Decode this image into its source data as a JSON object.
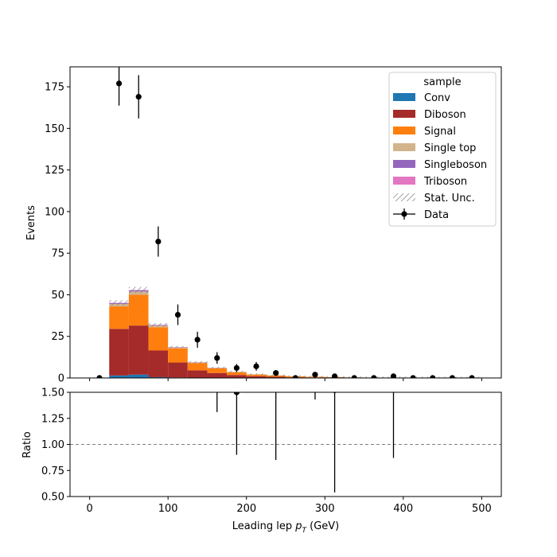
{
  "chart_data": {
    "type": "bar",
    "stacked": true,
    "xlabel": "Leading lep",
    "xlabel_math": "p",
    "xlabel_sub": "T",
    "xlabel_unit": "(GeV)",
    "ylabel_top": "Events",
    "ylabel_bottom": "Ratio",
    "xlim": [
      -25,
      525
    ],
    "ylim_top": [
      0,
      187
    ],
    "ylim_bottom": [
      0.5,
      1.5
    ],
    "bin_edges": [
      25,
      50,
      75,
      100,
      125,
      150,
      175,
      200,
      225,
      250,
      275,
      300,
      325,
      350,
      375,
      400,
      425,
      450,
      475,
      500
    ],
    "xticks": [
      0,
      100,
      200,
      300,
      400,
      500
    ],
    "xtick_labels": [
      "0",
      "100",
      "200",
      "300",
      "400",
      "500"
    ],
    "yticks_top": [
      0,
      25,
      50,
      75,
      100,
      125,
      150,
      175
    ],
    "ytick_labels_top": [
      "0",
      "25",
      "50",
      "75",
      "100",
      "125",
      "150",
      "175"
    ],
    "yticks_bottom": [
      0.5,
      0.75,
      1.0,
      1.25,
      1.5
    ],
    "ytick_labels_bottom": [
      "0.50",
      "0.75",
      "1.00",
      "1.25",
      "1.50"
    ],
    "legend": {
      "title": "sample",
      "placement": "top-right"
    },
    "series": [
      {
        "name": "Conv",
        "color": "#1f77b4",
        "values": [
          1.5,
          2,
          0.5,
          0.3,
          0.2,
          0.1,
          0,
          0,
          0,
          0,
          0,
          0,
          0,
          0,
          0,
          0,
          0,
          0,
          0
        ]
      },
      {
        "name": "Diboson",
        "color": "#a52a2a",
        "values": [
          28,
          29.5,
          16,
          9,
          4.4,
          2.9,
          1.8,
          1.1,
          0.7,
          0.4,
          0.3,
          0.2,
          0.1,
          0.1,
          0.1,
          0.05,
          0.05,
          0.05,
          0.05
        ]
      },
      {
        "name": "Signal",
        "color": "#ff7f0e",
        "values": [
          13.5,
          18.5,
          14,
          8.5,
          4.4,
          2.8,
          1.7,
          1.0,
          0.8,
          0.6,
          0.4,
          0.3,
          0.2,
          0.15,
          0.1,
          0.1,
          0.05,
          0.05,
          0.05
        ]
      },
      {
        "name": "Single top",
        "color": "#d2b48c",
        "values": [
          1.5,
          2,
          1,
          0.5,
          0.3,
          0.2,
          0.1,
          0.1,
          0,
          0,
          0,
          0,
          0,
          0,
          0,
          0,
          0,
          0,
          0
        ]
      },
      {
        "name": "Singleboson",
        "color": "#9467bd",
        "values": [
          0.5,
          0.7,
          0.3,
          0.2,
          0.1,
          0.1,
          0.05,
          0,
          0,
          0,
          0,
          0,
          0,
          0,
          0,
          0,
          0,
          0,
          0
        ]
      },
      {
        "name": "Triboson",
        "color": "#e377c2",
        "values": [
          0.2,
          0.2,
          0.1,
          0.1,
          0.05,
          0.05,
          0,
          0,
          0,
          0,
          0,
          0,
          0,
          0,
          0,
          0,
          0,
          0,
          0
        ]
      }
    ],
    "stat_unc": {
      "name": "Stat. Unc.",
      "rel": 0.035
    },
    "data": {
      "name": "Data",
      "x": [
        12.5,
        37.5,
        62.5,
        87.5,
        112.5,
        137.5,
        162.5,
        187.5,
        212.5,
        237.5,
        262.5,
        287.5,
        312.5,
        337.5,
        362.5,
        387.5,
        412.5,
        437.5,
        462.5,
        487.5
      ],
      "y": [
        0,
        177,
        169,
        82,
        38,
        23,
        12,
        6,
        7,
        3,
        0,
        2,
        1,
        0,
        0,
        1,
        0,
        0,
        0,
        0
      ],
      "yerr": [
        0,
        13.3,
        13,
        9.1,
        6.2,
        4.8,
        3.5,
        2.4,
        2.6,
        1.7,
        0,
        1.4,
        1,
        0,
        0,
        1,
        0,
        0,
        0,
        0
      ]
    },
    "ratio": {
      "points": [
        {
          "x": 162.5,
          "y": 1.76,
          "err": 0.45
        },
        {
          "x": 187.5,
          "y": 1.5,
          "err": 0.6
        },
        {
          "x": 237.5,
          "y": 1.75,
          "err": 0.9
        },
        {
          "x": 287.5,
          "y": 2.0,
          "err": 0.57
        },
        {
          "x": 312.5,
          "y": 1.52,
          "err": 0.98
        },
        {
          "x": 387.5,
          "y": 1.62,
          "err": 0.75
        }
      ],
      "reference": 1.0
    }
  }
}
